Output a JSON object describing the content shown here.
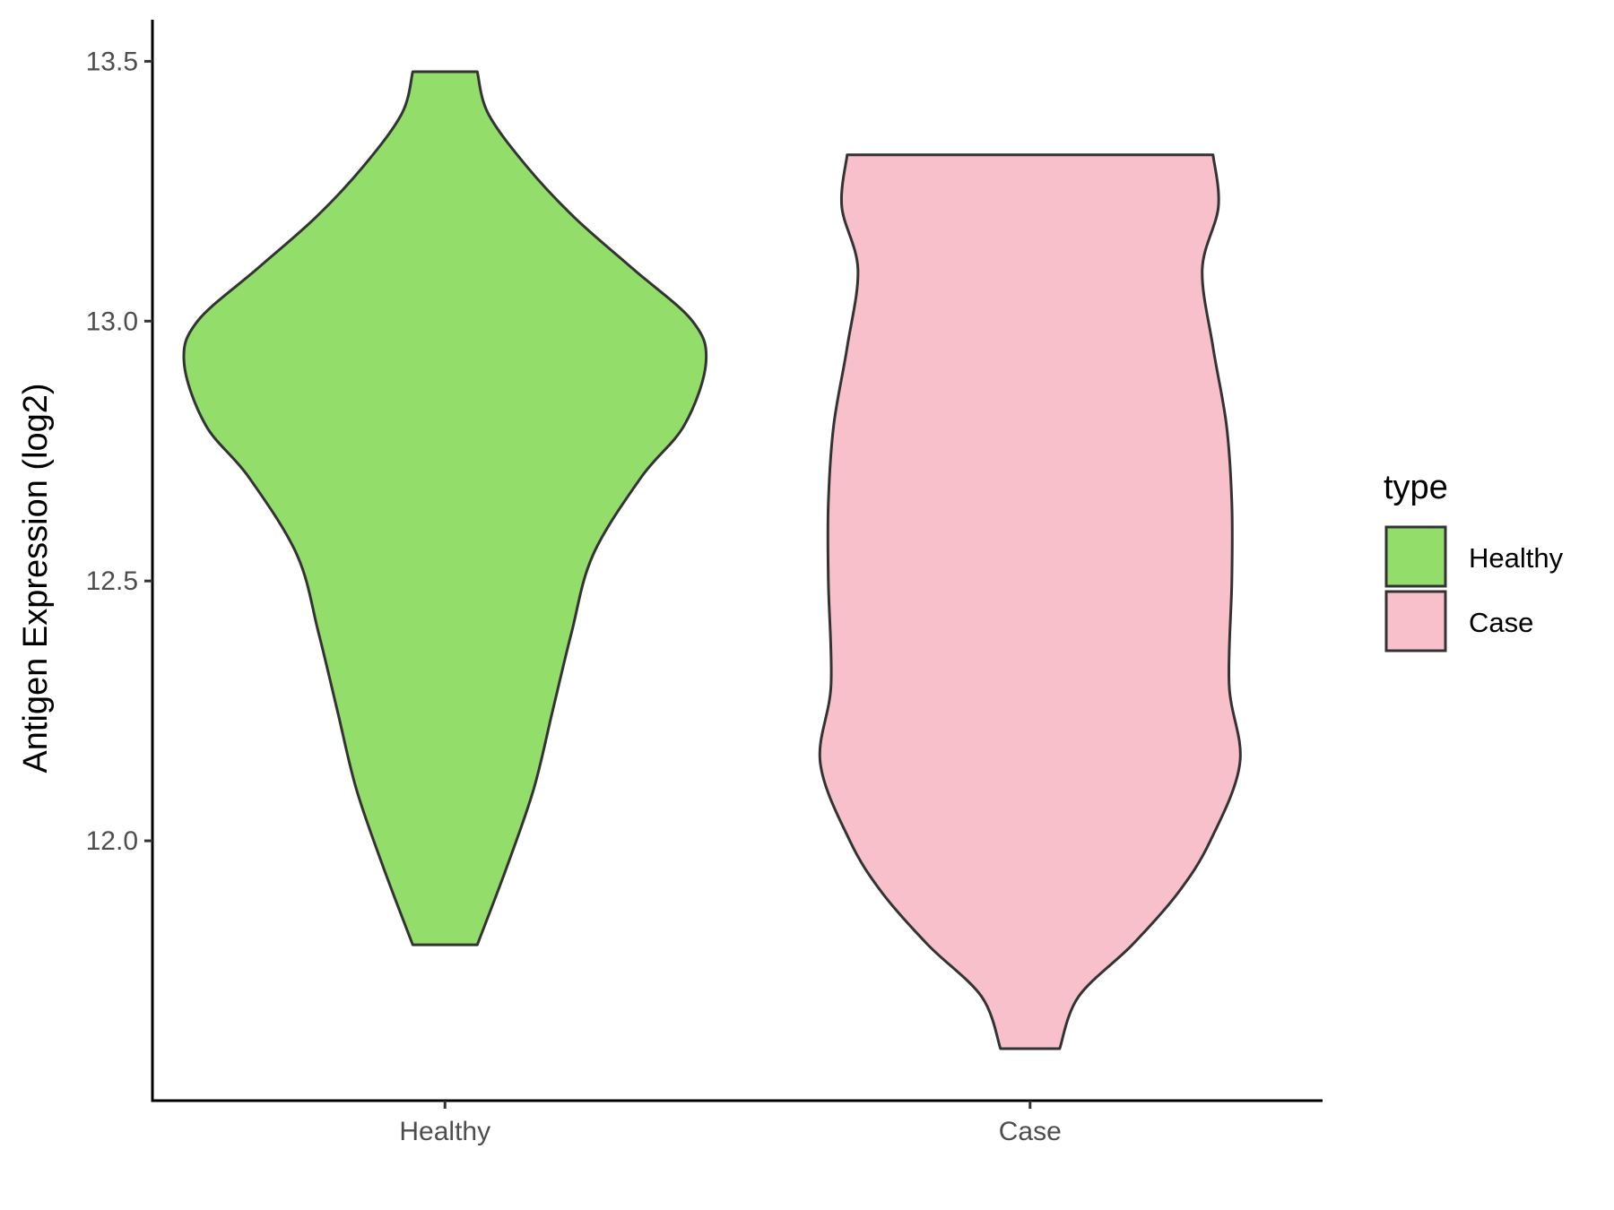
{
  "chart_data": {
    "type": "violin",
    "ylabel": "Antigen Expression (log2)",
    "ylim": [
      11.5,
      13.58
    ],
    "yticks": [
      12.0,
      12.5,
      13.0,
      13.5
    ],
    "ytick_labels": [
      "12.0",
      "12.5",
      "13.0",
      "13.5"
    ],
    "grid": false,
    "categories": [
      "Healthy",
      "Case"
    ],
    "legend": {
      "title": "type",
      "placement": "right",
      "entries": [
        "Healthy",
        "Case"
      ]
    },
    "series": [
      {
        "category": "Healthy",
        "color": "#93dd6b",
        "min": 11.8,
        "max": 13.48,
        "density_profile": [
          [
            11.8,
            0.12
          ],
          [
            11.95,
            0.23
          ],
          [
            12.1,
            0.33
          ],
          [
            12.25,
            0.4
          ],
          [
            12.4,
            0.47
          ],
          [
            12.55,
            0.55
          ],
          [
            12.7,
            0.73
          ],
          [
            12.8,
            0.89
          ],
          [
            12.92,
            0.97
          ],
          [
            13.0,
            0.92
          ],
          [
            13.1,
            0.7
          ],
          [
            13.2,
            0.48
          ],
          [
            13.3,
            0.3
          ],
          [
            13.4,
            0.16
          ],
          [
            13.48,
            0.12
          ]
        ]
      },
      {
        "category": "Case",
        "color": "#f8c0cb",
        "min": 11.6,
        "max": 13.32,
        "density_profile": [
          [
            11.6,
            0.11
          ],
          [
            11.7,
            0.18
          ],
          [
            11.8,
            0.38
          ],
          [
            11.9,
            0.55
          ],
          [
            12.0,
            0.67
          ],
          [
            12.15,
            0.78
          ],
          [
            12.3,
            0.74
          ],
          [
            12.5,
            0.75
          ],
          [
            12.65,
            0.75
          ],
          [
            12.8,
            0.73
          ],
          [
            12.95,
            0.68
          ],
          [
            13.1,
            0.64
          ],
          [
            13.22,
            0.7
          ],
          [
            13.32,
            0.68
          ]
        ]
      }
    ]
  }
}
